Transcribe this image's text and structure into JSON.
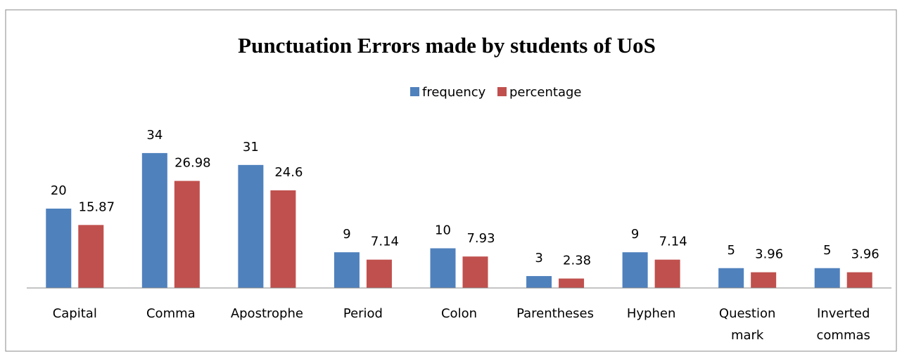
{
  "chart_data": {
    "type": "bar",
    "title": "Punctuation Errors made by students of UoS",
    "categories": [
      "Capital",
      "Comma",
      "Apostrophe",
      "Period",
      "Colon",
      "Parentheses",
      "Hyphen",
      "Question mark",
      "Inverted commas"
    ],
    "series": [
      {
        "name": "frequency",
        "color": "#4f81bd",
        "values": [
          20,
          34,
          31,
          9,
          10,
          3,
          9,
          5,
          5
        ]
      },
      {
        "name": "percentage",
        "color": "#c0504d",
        "values": [
          15.87,
          26.98,
          24.6,
          7.14,
          7.93,
          2.38,
          7.14,
          3.96,
          3.96
        ]
      }
    ],
    "ylim": [
      0,
      40
    ],
    "legend": "top"
  }
}
